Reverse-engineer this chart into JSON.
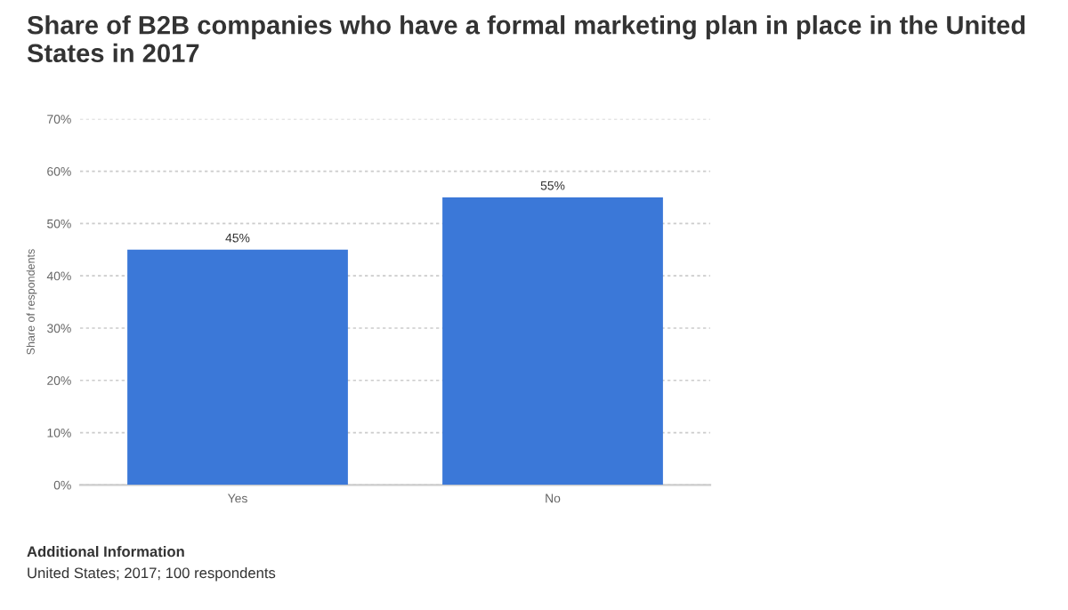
{
  "chart_data": {
    "type": "bar",
    "title": "Share of B2B companies who have a formal marketing plan in place in the United States in 2017",
    "ylabel": "Share of respondents",
    "categories": [
      "Yes",
      "No"
    ],
    "values": [
      45,
      55
    ],
    "value_labels": [
      "45%",
      "55%"
    ],
    "color": "#3b78d8",
    "ylim": [
      0,
      70
    ],
    "yticks": [
      {
        "value": 0,
        "label": "0%"
      },
      {
        "value": 10,
        "label": "10%"
      },
      {
        "value": 20,
        "label": "20%"
      },
      {
        "value": 30,
        "label": "30%"
      },
      {
        "value": 40,
        "label": "40%"
      },
      {
        "value": 50,
        "label": "50%"
      },
      {
        "value": 60,
        "label": "60%"
      },
      {
        "value": 70,
        "label": "70%"
      }
    ],
    "grid": "y",
    "annotations": [
      "Additional Information",
      "United States; 2017; 100 respondents"
    ]
  }
}
